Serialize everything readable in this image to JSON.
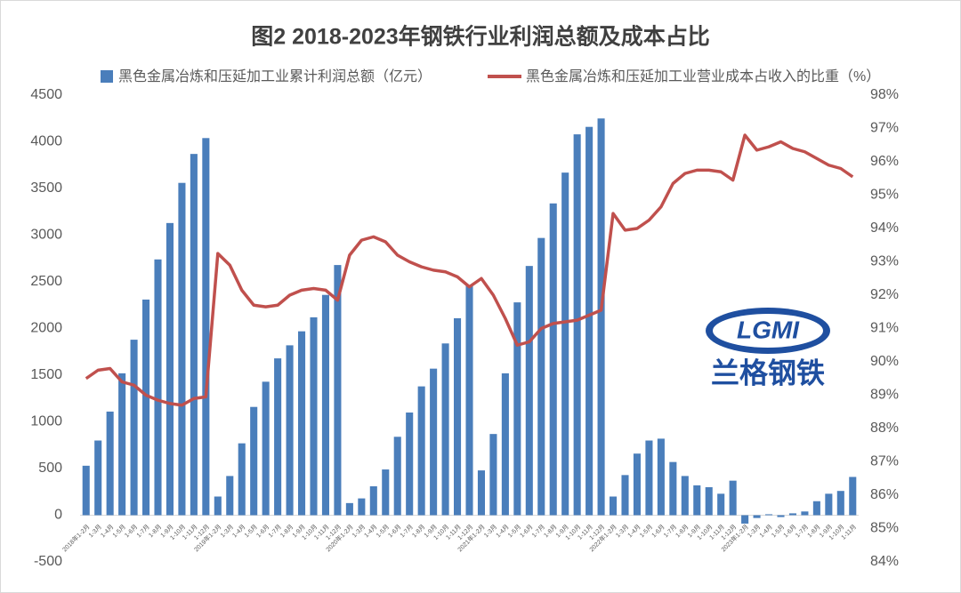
{
  "chart_data": {
    "type": "bar-line",
    "title": "图2 2018-2023年钢铁行业利润总额及成本占比",
    "logo": {
      "mark": "LGMI",
      "name": "兰格钢铁"
    },
    "categories": [
      "2018年1-2月",
      "1-3月",
      "1-4月",
      "1-5月",
      "1-6月",
      "1-7月",
      "1-8月",
      "1-9月",
      "1-10月",
      "1-11月",
      "1-12月",
      "2019年1-2月",
      "1-3月",
      "1-4月",
      "1-5月",
      "1-6月",
      "1-7月",
      "1-8月",
      "1-9月",
      "1-10月",
      "1-11月",
      "1-12月",
      "2020年1-2月",
      "1-3月",
      "1-4月",
      "1-5月",
      "1-6月",
      "1-7月",
      "1-8月",
      "1-9月",
      "1-10月",
      "1-11月",
      "1-12月",
      "2021年1-2月",
      "1-3月",
      "1-4月",
      "1-5月",
      "1-6月",
      "1-7月",
      "1-8月",
      "1-9月",
      "1-10月",
      "1-11月",
      "1-12月",
      "2022年1-2月",
      "1-3月",
      "1-4月",
      "1-5月",
      "1-6月",
      "1-7月",
      "1-8月",
      "1-9月",
      "1-10月",
      "1-11月",
      "1-12月",
      "2023年1-2月",
      "1-3月",
      "1-4月",
      "1-5月",
      "1-6月",
      "1-7月",
      "1-8月",
      "1-9月",
      "1-10月",
      "1-11月"
    ],
    "series": [
      {
        "name": "黑色金属冶炼和压延加工业累计利润总额（亿元）",
        "type": "bar",
        "color": "#4a7ebb",
        "values": [
          530,
          800,
          1110,
          1520,
          1880,
          2310,
          2740,
          3130,
          3560,
          3870,
          4040,
          200,
          420,
          770,
          1160,
          1430,
          1680,
          1820,
          1970,
          2120,
          2360,
          2680,
          130,
          180,
          310,
          490,
          840,
          1100,
          1380,
          1570,
          1840,
          2110,
          2460,
          480,
          870,
          1520,
          2280,
          2670,
          2970,
          3340,
          3670,
          4080,
          4160,
          4250,
          200,
          430,
          660,
          800,
          820,
          570,
          420,
          320,
          300,
          230,
          370,
          -90,
          -30,
          10,
          -20,
          20,
          40,
          150,
          230,
          260,
          410
        ]
      },
      {
        "name": "黑色金属冶炼和压延加工业营业成本占收入的比重（%）",
        "type": "line",
        "axis": "y2",
        "color": "#c0504d",
        "values": [
          89.5,
          89.75,
          89.8,
          89.4,
          89.3,
          89.0,
          88.85,
          88.75,
          88.7,
          88.9,
          88.95,
          93.25,
          92.9,
          92.15,
          91.7,
          91.65,
          91.7,
          92.0,
          92.15,
          92.2,
          92.15,
          91.85,
          93.2,
          93.65,
          93.75,
          93.6,
          93.2,
          93.0,
          92.85,
          92.75,
          92.7,
          92.55,
          92.25,
          92.5,
          92.0,
          91.3,
          90.5,
          90.6,
          91.0,
          91.15,
          91.2,
          91.25,
          91.4,
          91.55,
          94.45,
          93.95,
          94.0,
          94.25,
          94.65,
          95.35,
          95.65,
          95.75,
          95.75,
          95.7,
          95.45,
          96.8,
          96.35,
          96.45,
          96.6,
          96.4,
          96.3,
          96.1,
          95.9,
          95.8,
          95.55
        ]
      }
    ],
    "ylim": [
      -500,
      4500
    ],
    "yticks": [
      -500,
      0,
      500,
      1000,
      1500,
      2000,
      2500,
      3000,
      3500,
      4000,
      4500
    ],
    "y2lim": [
      84,
      98
    ],
    "y2ticks": [
      {
        "value": 84,
        "label": "84%"
      },
      {
        "value": 85,
        "label": "85%"
      },
      {
        "value": 86,
        "label": "86%"
      },
      {
        "value": 87,
        "label": "87%"
      },
      {
        "value": 88,
        "label": "88%"
      },
      {
        "value": 89,
        "label": "89%"
      },
      {
        "value": 90,
        "label": "90%"
      },
      {
        "value": 91,
        "label": "91%"
      },
      {
        "value": 92,
        "label": "92%"
      },
      {
        "value": 93,
        "label": "93%"
      },
      {
        "value": 94,
        "label": "94%"
      },
      {
        "value": 95,
        "label": "95%"
      },
      {
        "value": 96,
        "label": "96%"
      },
      {
        "value": 97,
        "label": "97%"
      },
      {
        "value": 98,
        "label": "98%"
      }
    ],
    "grid": false
  }
}
